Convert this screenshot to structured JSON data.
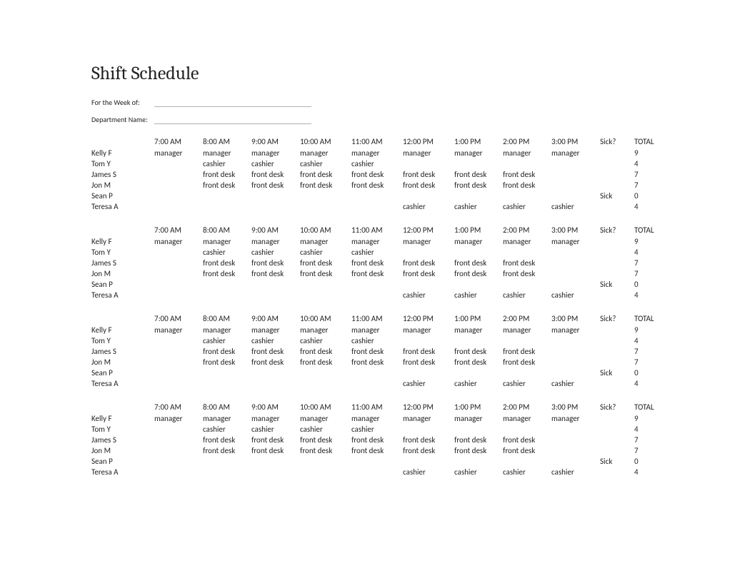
{
  "title": "Shift Schedule",
  "meta": {
    "week_label": "For the Week of:",
    "dept_label": "Department Name:"
  },
  "columns": {
    "times": [
      "7:00 AM",
      "8:00 AM",
      "9:00 AM",
      "10:00 AM",
      "11:00 AM",
      "12:00 PM",
      "1:00 PM",
      "2:00 PM",
      "3:00 PM"
    ],
    "sick": "Sick?",
    "total": "TOTAL"
  },
  "employees": [
    {
      "name": "Kelly F",
      "cells": [
        "manager",
        "manager",
        "manager",
        "manager",
        "manager",
        "manager",
        "manager",
        "manager",
        "manager"
      ],
      "sick": "",
      "total": "9"
    },
    {
      "name": "Tom Y",
      "cells": [
        "",
        "cashier",
        "cashier",
        "cashier",
        "cashier",
        "",
        "",
        "",
        ""
      ],
      "sick": "",
      "total": "4"
    },
    {
      "name": "James S",
      "cells": [
        "",
        "front desk",
        "front desk",
        "front desk",
        "front desk",
        "front desk",
        "front desk",
        "front desk",
        ""
      ],
      "sick": "",
      "total": "7"
    },
    {
      "name": "Jon M",
      "cells": [
        "",
        "front desk",
        "front desk",
        "front desk",
        "front desk",
        "front desk",
        "front desk",
        "front desk",
        ""
      ],
      "sick": "",
      "total": "7"
    },
    {
      "name": "Sean P",
      "cells": [
        "",
        "",
        "",
        "",
        "",
        "",
        "",
        "",
        ""
      ],
      "sick": "Sick",
      "total": "0"
    },
    {
      "name": "Teresa A",
      "cells": [
        "",
        "",
        "",
        "",
        "",
        "cashier",
        "cashier",
        "cashier",
        "cashier"
      ],
      "sick": "",
      "total": "4"
    }
  ],
  "block_count": 4
}
